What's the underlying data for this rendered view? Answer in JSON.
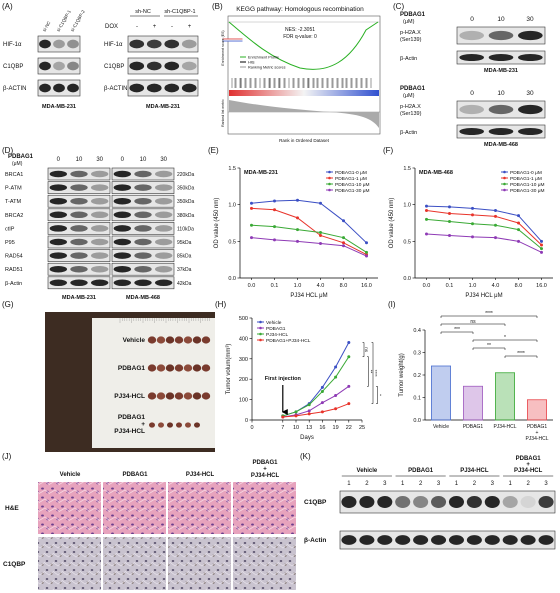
{
  "panel_labels": {
    "a": "(A)",
    "b": "(B)",
    "c": "(C)",
    "d": "(D)",
    "e": "(E)",
    "f": "(F)",
    "g": "(G)",
    "h": "(H)",
    "i": "(I)",
    "j": "(J)",
    "k": "(K)"
  },
  "panel_a": {
    "blot_1": {
      "lanes": [
        "si-NC",
        "si-C1QBP-1",
        "si-C1QBP-2"
      ],
      "rows": [
        "HIF-1α",
        "C1QBP",
        "β-ACTIN"
      ],
      "cell_line": "MDA-MB-231"
    },
    "blot_2": {
      "treatment": "DOX",
      "groups": [
        "sh-NC",
        "sh-C1QBP-1"
      ],
      "lanes": [
        "-",
        "+",
        "-",
        "+"
      ],
      "rows": [
        "HIF-1α",
        "C1QBP",
        "β-ACTIN"
      ],
      "cell_line": "MDA-MB-231"
    }
  },
  "panel_b": {
    "title": "KEGG pathway: Homologous recombination",
    "stats": [
      "NES: -2.3051",
      "FDR q-value: 0"
    ],
    "legend": [
      "Enrichment Profile",
      "Hits",
      "Ranking Metric scores"
    ],
    "y_label_top": "Enrichment score (ES)",
    "y_label_bottom": "Ranked list metric",
    "x_label": "Rank in Ordered Dataset"
  },
  "panel_c": {
    "blots": [
      {
        "treatment": "PDBAG1",
        "unit": "(μM)",
        "doses": [
          "0",
          "10",
          "30"
        ],
        "rows": [
          [
            "p-H2A.X",
            "(Ser139)"
          ],
          [
            "β-Actin"
          ]
        ],
        "cell_line": "MDA-MB-231"
      },
      {
        "treatment": "PDBAG1",
        "unit": "(μM)",
        "doses": [
          "0",
          "10",
          "30"
        ],
        "rows": [
          [
            "p-H2A.X",
            "(Ser139)"
          ],
          [
            "β-Actin"
          ]
        ],
        "cell_line": "MDA-MB-468"
      }
    ]
  },
  "panel_d": {
    "treatment": "PDBAG1",
    "unit": "(μM)",
    "doses": [
      "0",
      "10",
      "30",
      "0",
      "10",
      "30"
    ],
    "rows": [
      "BRCA1",
      "P-ATM",
      "T-ATM",
      "BRCA2",
      "ctIP",
      "P95",
      "RAD54",
      "RAD51",
      "β-Actin"
    ],
    "sizes": [
      "220kDa",
      "350kDa",
      "350kDa",
      "380kDa",
      "110kDa",
      "95kDa",
      "85kDa",
      "37kDa",
      "42kDa"
    ],
    "cell_lines": [
      "MDA-MB-231",
      "MDA-MB-468"
    ]
  },
  "panel_g": {
    "groups": [
      [
        "Vehicle"
      ],
      [
        "PDBAG1"
      ],
      [
        "PJ34-HCL"
      ],
      [
        "PDBAG1",
        "+",
        "PJ34-HCL"
      ]
    ]
  },
  "panel_j": {
    "groups": [
      [
        "Vehicle"
      ],
      [
        "PDBAG1"
      ],
      [
        "PJ34-HCL"
      ],
      [
        "PDBAG1",
        "+",
        "PJ34-HCL"
      ]
    ],
    "rows": [
      "H&E",
      "C1QBP"
    ]
  },
  "panel_k": {
    "groups": [
      [
        "Vehicle"
      ],
      [
        "PDBAG1"
      ],
      [
        "PJ34-HCL"
      ],
      [
        "PDBAG1",
        "+",
        "PJ34-HCL"
      ]
    ],
    "lanes": [
      "1",
      "2",
      "3"
    ],
    "rows": [
      "C1QBP",
      "β-Actin"
    ]
  },
  "chart_data": [
    {
      "type": "line",
      "title": "MDA-MB-231",
      "y_label": "OD value (450 nm)",
      "x_label": "PJ34 HCL μM",
      "categories": [
        "0.0",
        "0.1",
        "1.0",
        "4.0",
        "8.0",
        "16.0"
      ],
      "ylim": [
        0,
        1.5
      ],
      "yticks": [
        {
          "value": 0,
          "label": "0.0"
        },
        0.5,
        {
          "value": 1,
          "label": "1.0"
        },
        1.5
      ],
      "legend": "upper right",
      "series": [
        {
          "name": "PDBAG1-0 μM",
          "color": "#3b4fc4",
          "values": [
            1.02,
            1.05,
            1.06,
            1.02,
            0.78,
            0.48
          ]
        },
        {
          "name": "PDBAG1-1 μM",
          "color": "#e8332a",
          "values": [
            0.95,
            0.93,
            0.82,
            0.58,
            0.48,
            0.32
          ]
        },
        {
          "name": "PDBAG1-10 μM",
          "color": "#3aa935",
          "values": [
            0.72,
            0.7,
            0.66,
            0.62,
            0.55,
            0.35
          ]
        },
        {
          "name": "PDBAG1-30 μM",
          "color": "#8e3ab5",
          "values": [
            0.55,
            0.52,
            0.5,
            0.47,
            0.44,
            0.3
          ]
        }
      ]
    },
    {
      "type": "line",
      "title": "MDA-MB-468",
      "y_label": "OD value (450 nm)",
      "x_label": "PJ34 HCL μM",
      "categories": [
        "0.0",
        "0.1",
        "1.0",
        "4.0",
        "8.0",
        "16.0"
      ],
      "ylim": [
        0,
        1.5
      ],
      "yticks": [
        {
          "value": 0,
          "label": "0.0"
        },
        0.5,
        {
          "value": 1,
          "label": "1.0"
        },
        1.5
      ],
      "legend": "upper right",
      "series": [
        {
          "name": "PDBAG1-0 μM",
          "color": "#3b4fc4",
          "values": [
            0.98,
            0.97,
            0.95,
            0.92,
            0.85,
            0.5
          ]
        },
        {
          "name": "PDBAG1-1 μM",
          "color": "#e8332a",
          "values": [
            0.92,
            0.88,
            0.86,
            0.84,
            0.75,
            0.45
          ]
        },
        {
          "name": "PDBAG1-10 μM",
          "color": "#3aa935",
          "values": [
            0.8,
            0.77,
            0.74,
            0.72,
            0.66,
            0.4
          ]
        },
        {
          "name": "PDBAG1-30 μM",
          "color": "#8e3ab5",
          "values": [
            0.6,
            0.58,
            0.56,
            0.55,
            0.5,
            0.35
          ]
        }
      ]
    },
    {
      "type": "line",
      "y_label": "Tumor volum(mm³)",
      "x_label": "Days",
      "x": [
        7,
        10,
        13,
        16,
        19,
        22
      ],
      "xlim": [
        0,
        25
      ],
      "xticks": [
        0,
        7,
        10,
        13,
        16,
        19,
        22,
        25
      ],
      "ylim": [
        0,
        500
      ],
      "yticks": [
        0,
        100,
        200,
        300,
        400,
        500
      ],
      "legend": "upper left",
      "annotation": "First injection",
      "significance": [
        "ns",
        "**",
        "****",
        "*"
      ],
      "series": [
        {
          "name": "Vehicle",
          "color": "#3b4fc4",
          "values": [
            20,
            40,
            80,
            160,
            260,
            380
          ]
        },
        {
          "name": "PDBAG1",
          "color": "#8e3ab5",
          "values": [
            15,
            25,
            45,
            85,
            120,
            165
          ]
        },
        {
          "name": "PJ34-HCL",
          "color": "#3aa935",
          "values": [
            20,
            40,
            75,
            140,
            210,
            310
          ]
        },
        {
          "name": "PDBAG1+PJ34-HCL",
          "color": "#e8332a",
          "values": [
            15,
            20,
            30,
            40,
            55,
            80
          ]
        }
      ]
    },
    {
      "type": "bar",
      "y_label": "Tumor weight(g)",
      "categories": [
        [
          "Vehicle"
        ],
        [
          "PDBAG1"
        ],
        [
          "PJ34-HCL"
        ],
        [
          "PDBAG1",
          "+",
          "PJ34-HCL"
        ]
      ],
      "values": [
        0.24,
        0.15,
        0.21,
        0.09
      ],
      "colors": [
        "#4a6fd0",
        "#a05cc0",
        "#3aa935",
        "#e8474c"
      ],
      "ylim": [
        0,
        0.4
      ],
      "yticks": [
        {
          "value": 0,
          "label": "0.0"
        },
        0.1,
        0.2,
        0.3,
        0.4
      ],
      "significance": [
        "****",
        "ns",
        "***",
        "*",
        "**",
        "****"
      ]
    }
  ]
}
